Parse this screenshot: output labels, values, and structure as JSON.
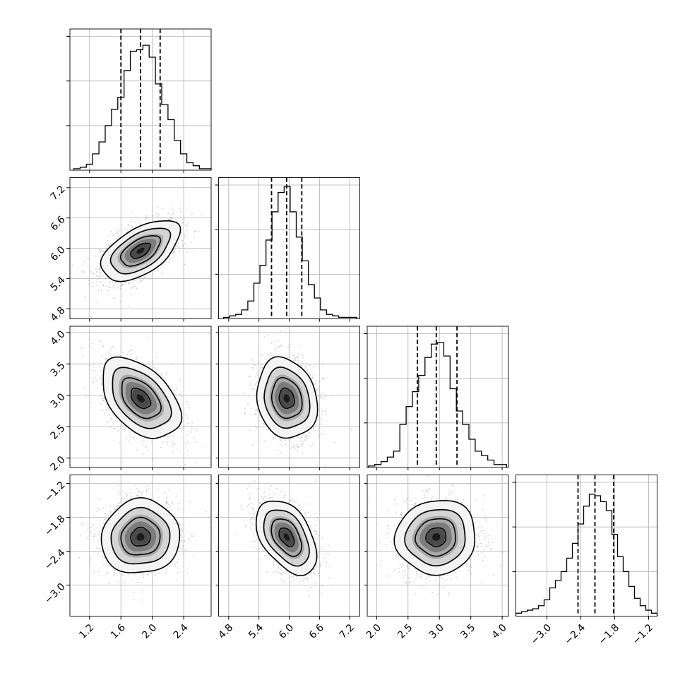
{
  "chart_data": {
    "type": "corner",
    "grid": true,
    "parameters": [
      {
        "range": [
          0.95,
          2.75
        ],
        "ticks": [
          1.2,
          1.6,
          2.0,
          2.4
        ],
        "tick_labels": [
          "1.2",
          "1.6",
          "2.0",
          "2.4"
        ],
        "quantiles": [
          1.6,
          1.85,
          2.1
        ],
        "histogram": {
          "bin_edges": [
            1.0,
            1.08,
            1.16,
            1.24,
            1.32,
            1.4,
            1.48,
            1.56,
            1.64,
            1.72,
            1.8,
            1.88,
            1.96,
            2.04,
            2.12,
            2.2,
            2.28,
            2.36,
            2.44,
            2.52,
            2.6,
            2.68,
            2.75
          ],
          "counts": [
            1,
            2,
            4,
            11,
            19,
            30,
            41,
            49,
            67,
            80,
            81,
            84,
            76,
            58,
            44,
            34,
            20,
            11,
            5,
            3,
            1,
            1
          ]
        }
      },
      {
        "range": [
          4.6,
          7.4
        ],
        "ticks": [
          4.8,
          5.4,
          6.0,
          6.6,
          7.2
        ],
        "tick_labels": [
          "4.8",
          "5.4",
          "6.0",
          "6.6",
          "7.2"
        ],
        "quantiles": [
          5.65,
          5.95,
          6.25
        ],
        "histogram": {
          "bin_edges": [
            4.7,
            4.82,
            4.94,
            5.06,
            5.18,
            5.3,
            5.42,
            5.54,
            5.66,
            5.78,
            5.9,
            6.02,
            6.14,
            6.26,
            6.38,
            6.5,
            6.62,
            6.74,
            6.86,
            6.98,
            7.1,
            7.22,
            7.34
          ],
          "counts": [
            1,
            2,
            3,
            6,
            12,
            24,
            36,
            53,
            72,
            85,
            89,
            72,
            55,
            39,
            23,
            14,
            6,
            3,
            2,
            1,
            1,
            1
          ]
        }
      },
      {
        "range": [
          1.85,
          4.1
        ],
        "ticks": [
          2.0,
          2.5,
          3.0,
          3.5,
          4.0
        ],
        "tick_labels": [
          "2.0",
          "2.5",
          "3.0",
          "3.5",
          "4.0"
        ],
        "quantiles": [
          2.65,
          2.95,
          3.28
        ],
        "histogram": {
          "bin_edges": [
            1.87,
            1.97,
            2.07,
            2.17,
            2.27,
            2.37,
            2.47,
            2.57,
            2.67,
            2.77,
            2.87,
            2.97,
            3.07,
            3.17,
            3.27,
            3.37,
            3.47,
            3.57,
            3.67,
            3.77,
            3.87,
            3.97,
            4.07
          ],
          "counts": [
            1,
            2,
            4,
            7,
            11,
            29,
            41,
            51,
            62,
            74,
            83,
            84,
            75,
            53,
            38,
            29,
            19,
            11,
            8,
            5,
            2,
            2
          ]
        }
      },
      {
        "range": [
          -3.55,
          -1.05
        ],
        "ticks": [
          -3.0,
          -2.4,
          -1.8,
          -1.2
        ],
        "tick_labels": [
          "−3.0",
          "−2.4",
          "−1.8",
          "−1.2"
        ],
        "quantiles": [
          -2.45,
          -2.15,
          -1.82
        ],
        "histogram": {
          "bin_edges": [
            -3.55,
            -3.45,
            -3.35,
            -3.25,
            -3.15,
            -3.05,
            -2.95,
            -2.85,
            -2.75,
            -2.65,
            -2.55,
            -2.45,
            -2.35,
            -2.25,
            -2.15,
            -2.05,
            -1.95,
            -1.85,
            -1.75,
            -1.65,
            -1.55,
            -1.45,
            -1.35,
            -1.25,
            -1.15,
            -1.05
          ],
          "counts": [
            2,
            3,
            4,
            5,
            7,
            11,
            19,
            24,
            30,
            39,
            49,
            62,
            74,
            82,
            81,
            77,
            71,
            55,
            40,
            30,
            20,
            12,
            7,
            4,
            2
          ]
        }
      }
    ],
    "hist_ylim": [
      0,
      95
    ],
    "hist_gridlines": [
      30,
      60,
      90
    ],
    "pairs": [
      {
        "x": 0,
        "y": 1,
        "mean": [
          1.85,
          5.95
        ],
        "sigma": [
          0.25,
          0.3
        ],
        "rho": 0.55
      },
      {
        "x": 0,
        "y": 2,
        "mean": [
          1.85,
          2.95
        ],
        "sigma": [
          0.25,
          0.32
        ],
        "rho": -0.45
      },
      {
        "x": 1,
        "y": 2,
        "mean": [
          5.95,
          2.95
        ],
        "sigma": [
          0.3,
          0.32
        ],
        "rho": -0.15
      },
      {
        "x": 0,
        "y": 3,
        "mean": [
          1.85,
          -2.15
        ],
        "sigma": [
          0.25,
          0.33
        ],
        "rho": 0.05
      },
      {
        "x": 1,
        "y": 3,
        "mean": [
          5.95,
          -2.15
        ],
        "sigma": [
          0.3,
          0.33
        ],
        "rho": -0.45
      },
      {
        "x": 2,
        "y": 3,
        "mean": [
          2.95,
          -2.15
        ],
        "sigma": [
          0.32,
          0.33
        ],
        "rho": 0.05
      }
    ],
    "contour_levels_sigma": [
      0.5,
      1.0,
      1.5,
      2.0
    ]
  }
}
